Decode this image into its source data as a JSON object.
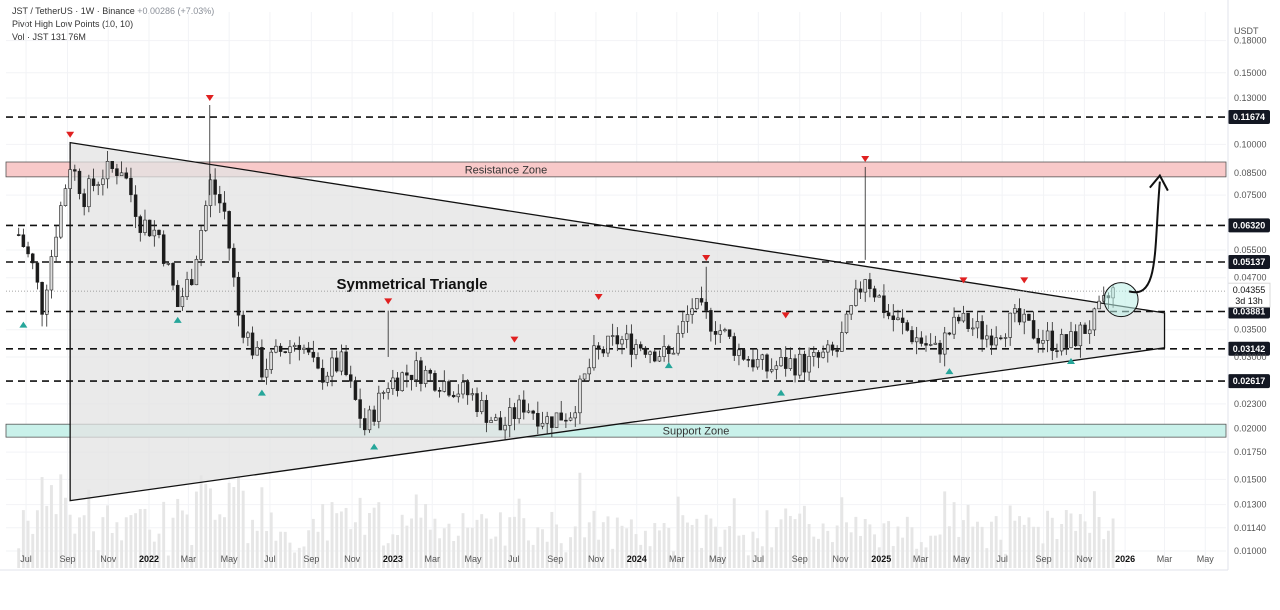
{
  "header": {
    "symbol_line": "JST / TetherUS · 1W · Binance",
    "change": "+0.00286 (+7.03%)",
    "indicator": "Pivot High Low Points (10, 10)",
    "volume": "Vol · JST  131.76M"
  },
  "colors": {
    "bull": "#dedede",
    "bear": "#1b1b1b",
    "resistance_fill": "#f8c9c9",
    "support_fill": "#c9f1ea",
    "pivot_high": "#e02020",
    "pivot_low": "#26a69a",
    "triangle_fill": "#e3e3e3",
    "badge": "#131722"
  },
  "chart_data": {
    "type": "candlestick",
    "title": "JST / TetherUS · 1W · Binance",
    "currency": "USDT",
    "y_scale": "log",
    "ylim": [
      0.0095,
      0.2
    ],
    "x_range": [
      "2021-06-01",
      "2026-06-01"
    ],
    "price_ticks": [
      "0.18000",
      "0.15000",
      "0.13000",
      "0.10000",
      "0.08500",
      "0.07500",
      "0.05500",
      "0.04700",
      "0.03500",
      "0.03000",
      "0.02300",
      "0.02000",
      "0.01750",
      "0.01500",
      "0.01300",
      "0.01140",
      "0.01000"
    ],
    "price_tick_values": [
      0.18,
      0.15,
      0.13,
      0.1,
      0.085,
      0.075,
      0.055,
      0.047,
      0.035,
      0.03,
      0.023,
      0.02,
      0.0175,
      0.015,
      0.013,
      0.0114,
      0.01
    ],
    "time_ticks": [
      {
        "label": "Jul",
        "date": "2021-07-01"
      },
      {
        "label": "Sep",
        "date": "2021-09-01"
      },
      {
        "label": "Nov",
        "date": "2021-11-01"
      },
      {
        "label": "2022",
        "date": "2022-01-01"
      },
      {
        "label": "Mar",
        "date": "2022-03-01"
      },
      {
        "label": "May",
        "date": "2022-05-01"
      },
      {
        "label": "Jul",
        "date": "2022-07-01"
      },
      {
        "label": "Sep",
        "date": "2022-09-01"
      },
      {
        "label": "Nov",
        "date": "2022-11-01"
      },
      {
        "label": "2023",
        "date": "2023-01-01"
      },
      {
        "label": "Mar",
        "date": "2023-03-01"
      },
      {
        "label": "May",
        "date": "2023-05-01"
      },
      {
        "label": "Jul",
        "date": "2023-07-01"
      },
      {
        "label": "Sep",
        "date": "2023-09-01"
      },
      {
        "label": "Nov",
        "date": "2023-11-01"
      },
      {
        "label": "2024",
        "date": "2024-01-01"
      },
      {
        "label": "Mar",
        "date": "2024-03-01"
      },
      {
        "label": "May",
        "date": "2024-05-01"
      },
      {
        "label": "Jul",
        "date": "2024-07-01"
      },
      {
        "label": "Sep",
        "date": "2024-09-01"
      },
      {
        "label": "Nov",
        "date": "2024-11-01"
      },
      {
        "label": "2025",
        "date": "2025-01-01"
      },
      {
        "label": "Mar",
        "date": "2025-03-01"
      },
      {
        "label": "May",
        "date": "2025-05-01"
      },
      {
        "label": "Jul",
        "date": "2025-07-01"
      },
      {
        "label": "Sep",
        "date": "2025-09-01"
      },
      {
        "label": "Nov",
        "date": "2025-11-01"
      },
      {
        "label": "2026",
        "date": "2026-01-01"
      },
      {
        "label": "Mar",
        "date": "2026-03-01"
      },
      {
        "label": "May",
        "date": "2026-05-01"
      }
    ],
    "levels": [
      {
        "value": 0.11674,
        "label": "0.11674"
      },
      {
        "value": 0.0632,
        "label": "0.06320"
      },
      {
        "value": 0.05137,
        "label": "0.05137"
      },
      {
        "value": 0.03881,
        "label": "0.03881"
      },
      {
        "value": 0.03142,
        "label": "0.03142"
      },
      {
        "value": 0.02617,
        "label": "0.02617"
      }
    ],
    "current_price": {
      "value": 0.04355,
      "label": "0.04355",
      "countdown": "3d 13h"
    },
    "zones": [
      {
        "name": "Resistance Zone",
        "low": 0.0832,
        "high": 0.0905
      },
      {
        "name": "Support Zone",
        "low": 0.01905,
        "high": 0.0205
      }
    ],
    "pattern": {
      "name": "Symmetrical Triangle",
      "upper_line": [
        {
          "date": "2021-09-05",
          "price": 0.101
        },
        {
          "date": "2026-03-01",
          "price": 0.0385
        }
      ],
      "lower_line": [
        {
          "date": "2021-09-05",
          "price": 0.0133
        },
        {
          "date": "2026-03-01",
          "price": 0.0316
        }
      ]
    },
    "pivot_highs": [
      {
        "date": "2021-09-05",
        "price": 0.1015
      },
      {
        "date": "2022-04-02",
        "price": 0.125
      },
      {
        "date": "2022-12-25",
        "price": 0.0395
      },
      {
        "date": "2023-07-02",
        "price": 0.0318
      },
      {
        "date": "2023-11-05",
        "price": 0.0405
      },
      {
        "date": "2024-04-14",
        "price": 0.0505
      },
      {
        "date": "2024-08-11",
        "price": 0.0365
      },
      {
        "date": "2024-12-08",
        "price": 0.0885
      },
      {
        "date": "2025-05-04",
        "price": 0.0445
      },
      {
        "date": "2025-08-03",
        "price": 0.0445
      }
    ],
    "pivot_lows": [
      {
        "date": "2021-06-27",
        "price": 0.0375
      },
      {
        "date": "2022-02-13",
        "price": 0.0385
      },
      {
        "date": "2022-06-19",
        "price": 0.0255
      },
      {
        "date": "2022-12-04",
        "price": 0.0188
      },
      {
        "date": "2024-02-18",
        "price": 0.0298
      },
      {
        "date": "2024-08-04",
        "price": 0.0255
      },
      {
        "date": "2025-04-13",
        "price": 0.0288
      },
      {
        "date": "2025-10-12",
        "price": 0.0305
      }
    ],
    "projection_arrow": {
      "from": {
        "date": "2025-12-14",
        "price": 0.0435
      },
      "to": {
        "date": "2026-02-22",
        "price": 0.081
      }
    },
    "highlight_circle": {
      "date": "2025-12-14",
      "price": 0.0415
    }
  }
}
